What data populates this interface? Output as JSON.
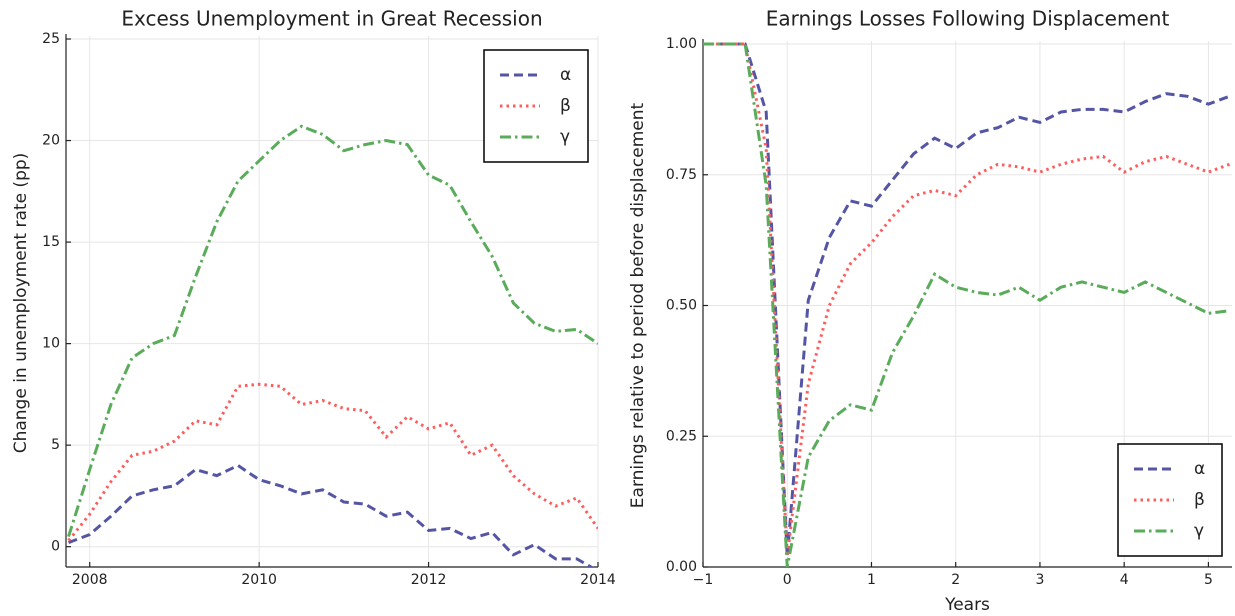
{
  "chart_data": [
    {
      "type": "line",
      "title": "Excess Unemployment in Great Recession",
      "ylabel": "Change in unemployment rate (pp)",
      "x": [
        2007.75,
        2008,
        2008.25,
        2008.5,
        2008.75,
        2009,
        2009.25,
        2009.5,
        2009.75,
        2010,
        2010.25,
        2010.5,
        2010.75,
        2011,
        2011.25,
        2011.5,
        2011.75,
        2012,
        2012.25,
        2012.5,
        2012.75,
        2013,
        2013.25,
        2013.5,
        2013.75,
        2014
      ],
      "series": [
        {
          "name": "α",
          "color": "#5555a5",
          "dash": "dashed",
          "values": [
            0.2,
            0.6,
            1.5,
            2.5,
            2.8,
            3.0,
            3.8,
            3.5,
            4.0,
            3.3,
            3.0,
            2.6,
            2.8,
            2.2,
            2.1,
            1.5,
            1.7,
            0.8,
            0.9,
            0.4,
            0.7,
            -0.4,
            0.1,
            -0.6,
            -0.6,
            -1.2
          ]
        },
        {
          "name": "β",
          "color": "#ff5c5c",
          "dash": "dotted",
          "values": [
            0.3,
            1.6,
            3.2,
            4.5,
            4.7,
            5.2,
            6.2,
            6.0,
            7.9,
            8.0,
            7.9,
            7.0,
            7.2,
            6.8,
            6.7,
            5.4,
            6.4,
            5.8,
            6.1,
            4.5,
            5.0,
            3.5,
            2.6,
            2.0,
            2.4,
            0.9
          ]
        },
        {
          "name": "γ",
          "color": "#5aab5a",
          "dash": "dashdot",
          "values": [
            0.5,
            3.8,
            7.0,
            9.3,
            10.0,
            10.4,
            13.3,
            16.0,
            18.0,
            19.0,
            20.0,
            20.7,
            20.3,
            19.5,
            19.8,
            20.0,
            19.8,
            18.3,
            17.8,
            16.0,
            14.3,
            12.0,
            11.0,
            10.6,
            10.7,
            10.0
          ]
        }
      ],
      "xlim": [
        2007.72,
        2014
      ],
      "xticks": [
        2008,
        2010,
        2012,
        2014
      ],
      "ylim": [
        -1,
        25
      ],
      "yticks": [
        0,
        5,
        10,
        15,
        20,
        25
      ],
      "grid": true,
      "legend": "upper right"
    },
    {
      "type": "line",
      "title": "Earnings Losses Following Displacement",
      "xlabel": "Years",
      "ylabel": "Earnings relative to period before displacement",
      "x": [
        -1,
        -0.75,
        -0.5,
        -0.25,
        0,
        0.25,
        0.5,
        0.75,
        1,
        1.25,
        1.5,
        1.75,
        2,
        2.25,
        2.5,
        2.75,
        3,
        3.25,
        3.5,
        3.75,
        4,
        4.25,
        4.5,
        4.75,
        5,
        5.25
      ],
      "series": [
        {
          "name": "α",
          "color": "#5555a5",
          "dash": "dashed",
          "values": [
            1,
            1,
            1,
            0.87,
            0.02,
            0.51,
            0.63,
            0.7,
            0.69,
            0.74,
            0.79,
            0.82,
            0.8,
            0.83,
            0.84,
            0.86,
            0.85,
            0.87,
            0.875,
            0.875,
            0.87,
            0.89,
            0.905,
            0.9,
            0.885,
            0.9
          ]
        },
        {
          "name": "β",
          "color": "#ff5c5c",
          "dash": "dotted",
          "values": [
            1,
            1,
            1,
            0.8,
            0.02,
            0.35,
            0.5,
            0.58,
            0.62,
            0.67,
            0.71,
            0.72,
            0.71,
            0.75,
            0.77,
            0.765,
            0.755,
            0.77,
            0.78,
            0.785,
            0.755,
            0.775,
            0.785,
            0.77,
            0.755,
            0.77
          ]
        },
        {
          "name": "γ",
          "color": "#5aab5a",
          "dash": "dashdot",
          "values": [
            1,
            1,
            1,
            0.73,
            0.0,
            0.21,
            0.28,
            0.31,
            0.3,
            0.41,
            0.48,
            0.56,
            0.535,
            0.525,
            0.52,
            0.535,
            0.51,
            0.535,
            0.545,
            0.535,
            0.525,
            0.545,
            0.525,
            0.505,
            0.485,
            0.49
          ]
        }
      ],
      "xlim": [
        -1,
        5.28
      ],
      "xticks": [
        {
          "value": -1,
          "label": "−1"
        },
        0,
        1,
        2,
        3,
        4,
        5
      ],
      "ylim": [
        0,
        1
      ],
      "yticks": [
        {
          "value": 0,
          "label": "0.00"
        },
        {
          "value": 0.25,
          "label": "0.25"
        },
        {
          "value": 0.5,
          "label": "0.50"
        },
        {
          "value": 0.75,
          "label": "0.75"
        },
        {
          "value": 1,
          "label": "1.00"
        }
      ],
      "grid": true,
      "legend": "lower right"
    }
  ]
}
